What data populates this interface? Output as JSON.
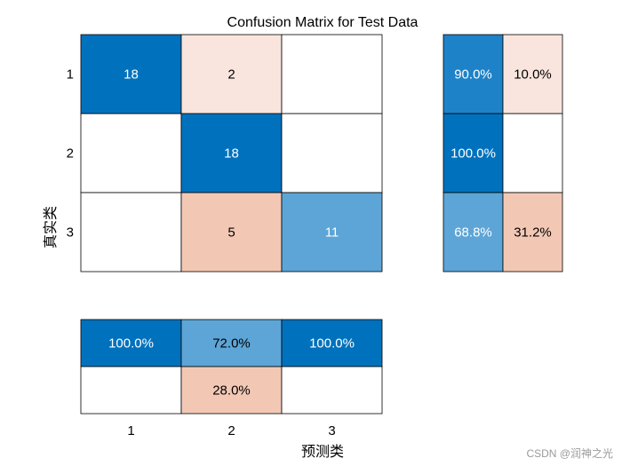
{
  "chart_data": {
    "type": "heatmap",
    "title": "Confusion Matrix for Test Data",
    "xlabel": "预测类",
    "ylabel": "真实类",
    "classes": [
      "1",
      "2",
      "3"
    ],
    "matrix": [
      [
        18,
        2,
        null
      ],
      [
        null,
        18,
        null
      ],
      [
        null,
        5,
        11
      ]
    ],
    "row_summary": [
      [
        "90.0%",
        "10.0%"
      ],
      [
        "100.0%",
        null
      ],
      [
        "68.8%",
        "31.2%"
      ]
    ],
    "column_summary": [
      [
        "100.0%",
        "72.0%",
        "100.0%"
      ],
      [
        null,
        "28.0%",
        null
      ]
    ],
    "colors": {
      "correct_strong": "#0072BD",
      "correct_mid": "#1E82C8",
      "correct_light": "#5DA5D6",
      "incorrect_pale": "#F9E5DD",
      "incorrect_mid": "#F2C8B5",
      "empty": "#FFFFFF"
    }
  },
  "watermark": "CSDN @润神之光"
}
